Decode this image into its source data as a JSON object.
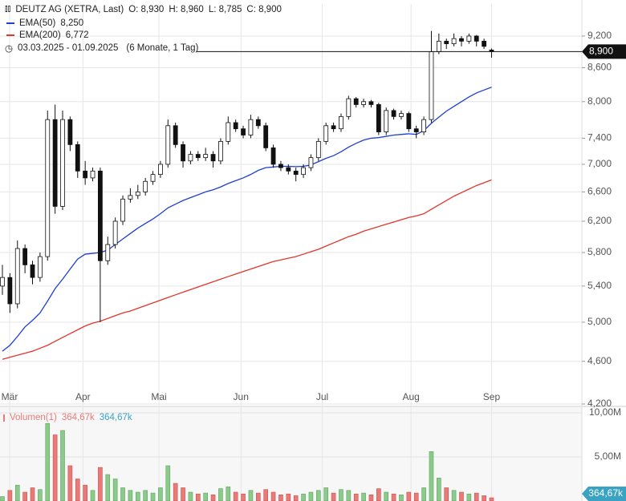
{
  "chart_data": {
    "type": "candlestick",
    "header": {
      "symbol": "DEUTZ AG (XETRA, Last)",
      "quote": [
        "O: 8,930",
        "H: 8,960",
        "L: 8,785",
        "C: 8,900"
      ],
      "range": "03.03.2025 - 01.09.2025",
      "period": "(6 Monate, 1 Tag)",
      "last_price_label": "8,900"
    },
    "log_scale": true,
    "grid": true,
    "up_color": "#ffffff",
    "down_color": "#111111",
    "ylim": [
      4200,
      9850
    ],
    "yticks": [
      {
        "value": 4200,
        "label": "4,200"
      },
      {
        "value": 4600,
        "label": "4,600"
      },
      {
        "value": 5000,
        "label": "5,000"
      },
      {
        "value": 5400,
        "label": "5,400"
      },
      {
        "value": 5800,
        "label": "5,800"
      },
      {
        "value": 6200,
        "label": "6,200"
      },
      {
        "value": 6600,
        "label": "6,600"
      },
      {
        "value": 7000,
        "label": "7,000"
      },
      {
        "value": 7400,
        "label": "7,400"
      },
      {
        "value": 8000,
        "label": "8,000"
      },
      {
        "value": 8600,
        "label": "8,600"
      },
      {
        "value": 9200,
        "label": "9,200"
      }
    ],
    "xlim": [
      -0.32,
      77
    ],
    "xticks": [
      {
        "value": 0.96,
        "label": "Mär"
      },
      {
        "value": 10.7,
        "label": "Apr"
      },
      {
        "value": 20.8,
        "label": "Mai"
      },
      {
        "value": 31.7,
        "label": "Jun"
      },
      {
        "value": 42.5,
        "label": "Jul"
      },
      {
        "value": 54.3,
        "label": "Aug"
      },
      {
        "value": 65,
        "label": "Sep"
      }
    ],
    "open": [
      5400,
      5500,
      5200,
      5850,
      5650,
      5500,
      5750,
      7700,
      6400,
      7700,
      7300,
      6900,
      6800,
      6900,
      5700,
      5900,
      6200,
      6500,
      6550,
      6600,
      6750,
      6850,
      7000,
      7600,
      7300,
      7050,
      7150,
      7100,
      7150,
      7050,
      7350,
      7650,
      7550,
      7450,
      7700,
      7600,
      7250,
      7000,
      6950,
      6900,
      6850,
      6950,
      7100,
      7350,
      7600,
      7550,
      7750,
      8050,
      7950,
      8000,
      7950,
      7500,
      7850,
      7750,
      7800,
      7550,
      7500,
      7700,
      8900,
      9100,
      9050,
      9150,
      9100,
      9200,
      9100,
      8930
    ],
    "high": [
      5650,
      5550,
      5950,
      5900,
      5700,
      5800,
      7850,
      7950,
      7850,
      7750,
      7350,
      7050,
      6950,
      6950,
      6000,
      6250,
      6550,
      6650,
      6700,
      6800,
      6900,
      7050,
      7700,
      7650,
      7350,
      7200,
      7200,
      7250,
      7200,
      7400,
      7750,
      7700,
      7600,
      7780,
      7750,
      7650,
      7300,
      7050,
      7000,
      6950,
      7000,
      7150,
      7400,
      7650,
      7650,
      7800,
      8100,
      8080,
      8050,
      8030,
      7980,
      7900,
      7880,
      7850,
      7830,
      7600,
      7750,
      9300,
      9250,
      9150,
      9250,
      9200,
      9250,
      9220,
      9150,
      8960
    ],
    "low": [
      5300,
      5100,
      5150,
      5550,
      5420,
      5450,
      5700,
      6300,
      6350,
      7200,
      6800,
      6700,
      6750,
      5000,
      5650,
      5850,
      6150,
      6450,
      6500,
      6550,
      6700,
      6800,
      6950,
      7250,
      6950,
      7000,
      7050,
      7050,
      6950,
      7000,
      7300,
      7500,
      7400,
      7400,
      7550,
      7200,
      6950,
      6900,
      6850,
      6750,
      6800,
      6900,
      7050,
      7300,
      7500,
      7500,
      7700,
      7900,
      7900,
      7900,
      7450,
      7450,
      7700,
      7700,
      7500,
      7400,
      7450,
      7650,
      8850,
      8950,
      9000,
      9000,
      9050,
      9000,
      8950,
      8785
    ],
    "close": [
      5500,
      5200,
      5850,
      5650,
      5500,
      5750,
      7700,
      6400,
      7700,
      7300,
      6900,
      6800,
      6900,
      5700,
      5900,
      6200,
      6500,
      6550,
      6600,
      6750,
      6850,
      7000,
      7600,
      7300,
      7050,
      7150,
      7100,
      7150,
      7050,
      7350,
      7650,
      7550,
      7450,
      7700,
      7600,
      7250,
      7000,
      6950,
      6900,
      6850,
      6950,
      7100,
      7350,
      7600,
      7550,
      7750,
      8050,
      7950,
      8000,
      7950,
      7500,
      7850,
      7750,
      7800,
      7550,
      7500,
      7700,
      8900,
      9100,
      9050,
      9150,
      9100,
      9200,
      9100,
      9000,
      8900
    ],
    "series": [
      {
        "name": "EMA(50)",
        "color": "#1f3fd1",
        "last_label": "8,250",
        "values": [
          4700,
          4760,
          4850,
          4950,
          5020,
          5100,
          5230,
          5370,
          5480,
          5600,
          5720,
          5780,
          5790,
          5800,
          5830,
          5900,
          5970,
          6040,
          6110,
          6170,
          6230,
          6300,
          6380,
          6430,
          6480,
          6520,
          6560,
          6600,
          6630,
          6670,
          6720,
          6760,
          6800,
          6850,
          6910,
          6950,
          6960,
          6970,
          6970,
          6965,
          6970,
          6990,
          7040,
          7090,
          7130,
          7190,
          7260,
          7320,
          7370,
          7400,
          7410,
          7430,
          7450,
          7460,
          7470,
          7460,
          7520,
          7640,
          7740,
          7840,
          7920,
          8000,
          8080,
          8150,
          8200,
          8250
        ]
      },
      {
        "name": "EMA(200)",
        "color": "#e0362c",
        "last_label": "6,772",
        "values": [
          4620,
          4640,
          4660,
          4680,
          4700,
          4730,
          4760,
          4800,
          4840,
          4880,
          4920,
          4960,
          4990,
          5010,
          5040,
          5070,
          5100,
          5120,
          5150,
          5180,
          5210,
          5240,
          5270,
          5300,
          5330,
          5360,
          5390,
          5420,
          5450,
          5480,
          5510,
          5540,
          5570,
          5600,
          5630,
          5660,
          5690,
          5710,
          5730,
          5750,
          5780,
          5810,
          5840,
          5880,
          5920,
          5960,
          6000,
          6030,
          6070,
          6100,
          6130,
          6160,
          6190,
          6220,
          6250,
          6270,
          6300,
          6360,
          6420,
          6480,
          6540,
          6590,
          6640,
          6690,
          6730,
          6772
        ]
      }
    ],
    "volume": {
      "name": "Volumen(1)",
      "labels": [
        "364,67k",
        "364,67k"
      ],
      "last_label": "364,67k",
      "up_color": "#8cc98c",
      "down_color": "#e87b78",
      "label_color": "#3aa3c4",
      "ylim": [
        0,
        10.64
      ],
      "yticks": [
        {
          "value": 5,
          "label": "5,00M"
        },
        {
          "value": 10,
          "label": "10,00M"
        }
      ],
      "values": [
        0.5,
        1.2,
        1.8,
        1.0,
        1.5,
        1.3,
        8.8,
        7.5,
        8.0,
        4.0,
        2.5,
        1.8,
        1.2,
        3.8,
        3.0,
        2.5,
        1.5,
        1.2,
        1.0,
        1.2,
        0.9,
        1.5,
        4.0,
        2.0,
        1.5,
        1.0,
        0.8,
        0.9,
        0.7,
        1.4,
        1.6,
        1.0,
        0.8,
        1.2,
        0.9,
        1.3,
        1.0,
        0.7,
        0.8,
        0.6,
        0.8,
        1.0,
        1.2,
        1.5,
        0.9,
        1.3,
        1.2,
        0.8,
        0.9,
        0.7,
        1.4,
        1.0,
        0.8,
        0.7,
        1.0,
        0.9,
        1.5,
        5.6,
        2.6,
        1.5,
        1.2,
        1.0,
        0.8,
        0.9,
        0.6,
        0.36467
      ]
    }
  }
}
